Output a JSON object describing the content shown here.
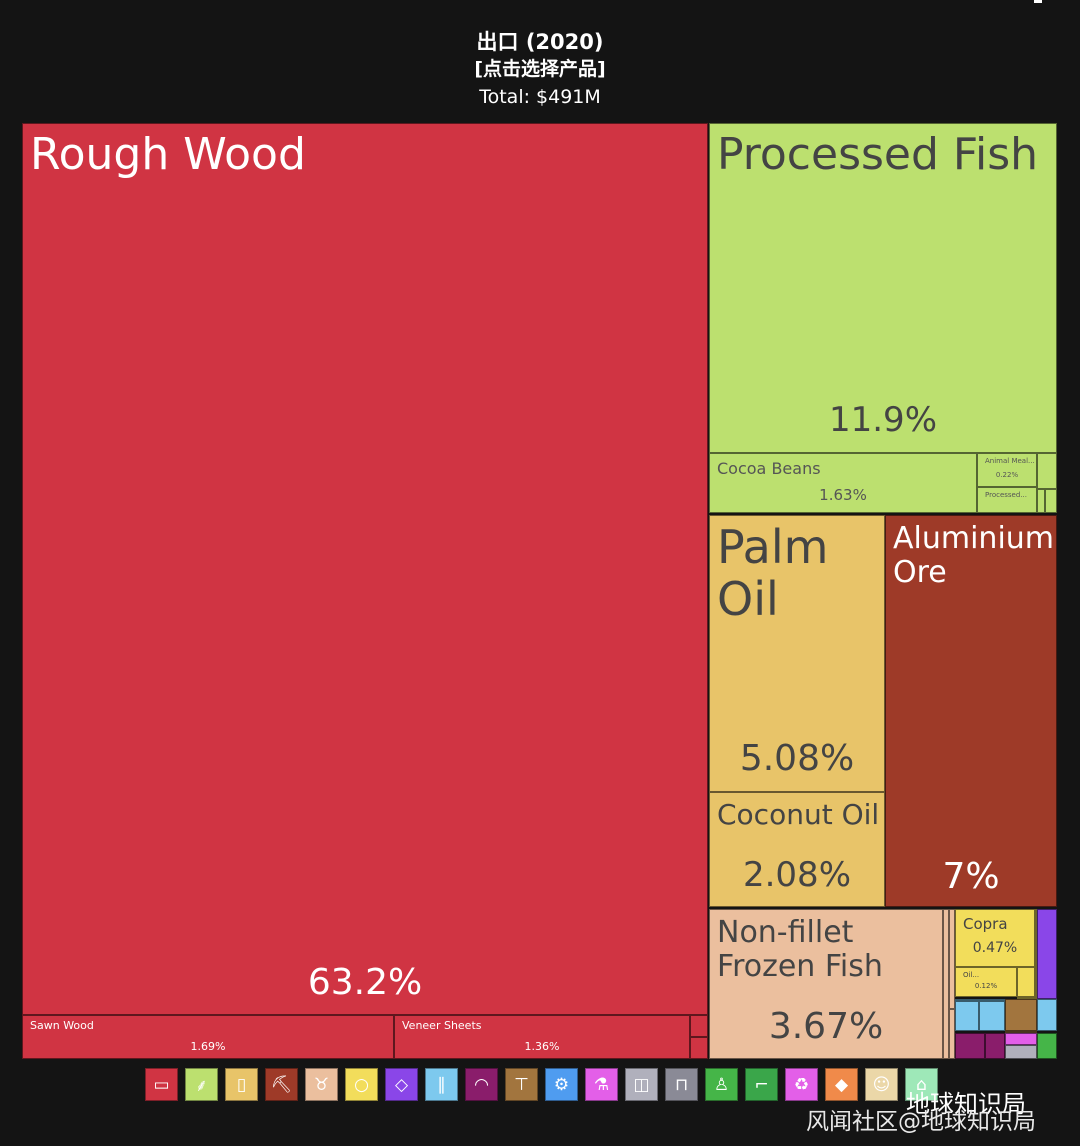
{
  "header": {
    "title": "出口 (2020)",
    "subtitle": "[点击选择产品]",
    "total": "Total: $491M"
  },
  "chart_data": {
    "type": "treemap",
    "title": "出口 (2020)",
    "total": "$491M",
    "items": [
      {
        "name": "Rough Wood",
        "share_pct": 63.2,
        "label": "Rough Wood",
        "pct_label": "63.2%",
        "color": "#d03443"
      },
      {
        "name": "Sawn Wood",
        "share_pct": 1.69,
        "label": "Sawn Wood",
        "pct_label": "1.69%",
        "color": "#d03443"
      },
      {
        "name": "Veneer Sheets",
        "share_pct": 1.36,
        "label": "Veneer Sheets",
        "pct_label": "1.36%",
        "color": "#d03443"
      },
      {
        "name": "Processed Fish",
        "share_pct": 11.9,
        "label": "Processed Fish",
        "pct_label": "11.9%",
        "color": "#bce06f"
      },
      {
        "name": "Cocoa Beans",
        "share_pct": 1.63,
        "label": "Cocoa Beans",
        "pct_label": "1.63%",
        "color": "#bce06f"
      },
      {
        "name": "Animal Meal...",
        "share_pct": 0.22,
        "label": "Animal Meal...",
        "pct_label": "0.22%",
        "color": "#bce06f"
      },
      {
        "name": "Processed...",
        "label": "Processed...",
        "pct_label": "",
        "color": "#bce06f"
      },
      {
        "name": "Palm Oil",
        "share_pct": 5.08,
        "label": "Palm\nOil",
        "pct_label": "5.08%",
        "color": "#e8c469"
      },
      {
        "name": "Coconut Oil",
        "share_pct": 2.08,
        "label": "Coconut Oil",
        "pct_label": "2.08%",
        "color": "#e8c469"
      },
      {
        "name": "Aluminium Ore",
        "share_pct": 7,
        "label": "Aluminium\nOre",
        "pct_label": "7%",
        "color": "#9e3a28"
      },
      {
        "name": "Non-fillet Frozen Fish",
        "share_pct": 3.67,
        "label": "Non-fillet\nFrozen Fish",
        "pct_label": "3.67%",
        "color": "#ebbf9e"
      },
      {
        "name": "Copra",
        "share_pct": 0.47,
        "label": "Copra",
        "pct_label": "0.47%",
        "color": "#f2dd5b"
      },
      {
        "name": "Oil...",
        "share_pct": 0.12,
        "label": "Oil...",
        "pct_label": "0.12%",
        "color": "#f2dd5b"
      }
    ],
    "minor_tiles": [
      {
        "color": "#ebbf9e"
      },
      {
        "color": "#ebbf9e"
      },
      {
        "color": "#ebbf9e"
      },
      {
        "color": "#f2dd5b"
      },
      {
        "color": "#f2dd5b"
      },
      {
        "color": "#f2dd5b"
      },
      {
        "color": "#8a46e8"
      },
      {
        "color": "#7dc9ee"
      },
      {
        "color": "#7dc9ee"
      },
      {
        "color": "#7dc9ee"
      },
      {
        "color": "#a2753e"
      },
      {
        "color": "#a2753e"
      },
      {
        "color": "#7dc9ee"
      },
      {
        "color": "#8a1d6b"
      },
      {
        "color": "#8a1d6b"
      },
      {
        "color": "#e35fe8"
      },
      {
        "color": "#b0b0bc"
      },
      {
        "color": "#45b548"
      },
      {
        "color": "#bce06f"
      },
      {
        "color": "#bce06f"
      },
      {
        "color": "#bce06f"
      },
      {
        "color": "#bce06f"
      },
      {
        "color": "#d03443"
      },
      {
        "color": "#d03443"
      }
    ]
  },
  "category_icons": [
    {
      "name": "wood-icon",
      "glyph": "▭",
      "color": "#d03443"
    },
    {
      "name": "wheat-icon",
      "glyph": "⸙",
      "color": "#bce06f"
    },
    {
      "name": "bottle-icon",
      "glyph": "▯",
      "color": "#e8c469"
    },
    {
      "name": "pickaxe-icon",
      "glyph": "⛏",
      "color": "#9e3a28"
    },
    {
      "name": "cow-icon",
      "glyph": "♉",
      "color": "#ebbf9e"
    },
    {
      "name": "fruit-icon",
      "glyph": "○",
      "color": "#f2dd5b"
    },
    {
      "name": "diamond-icon",
      "glyph": "◇",
      "color": "#8a46e8"
    },
    {
      "name": "road-icon",
      "glyph": "∥",
      "color": "#7dc9ee"
    },
    {
      "name": "gauge-icon",
      "glyph": "◠",
      "color": "#8a1d6b"
    },
    {
      "name": "anvil-icon",
      "glyph": "⊤",
      "color": "#a2753e"
    },
    {
      "name": "gear-icon",
      "glyph": "⚙",
      "color": "#4f9cf0"
    },
    {
      "name": "flask-icon",
      "glyph": "⚗",
      "color": "#e35fe8"
    },
    {
      "name": "box-icon",
      "glyph": "◫",
      "color": "#b0b0bc"
    },
    {
      "name": "easel-icon",
      "glyph": "⊓",
      "color": "#8a8a96"
    },
    {
      "name": "shirt-icon",
      "glyph": "♙",
      "color": "#45b548"
    },
    {
      "name": "shoe-icon",
      "glyph": "⌐",
      "color": "#3aa64a"
    },
    {
      "name": "recycle-icon",
      "glyph": "♻",
      "color": "#e35fe8"
    },
    {
      "name": "ore-icon",
      "glyph": "◆",
      "color": "#f08a4a"
    },
    {
      "name": "wechat-icon",
      "glyph": "☺",
      "color": "#ebd7a8"
    },
    {
      "name": "misc-icon",
      "glyph": "⌂",
      "color": "#9ee8b8"
    }
  ],
  "watermark": {
    "brand": "地球知识局",
    "credit": "风闻社区@地球知识局"
  }
}
